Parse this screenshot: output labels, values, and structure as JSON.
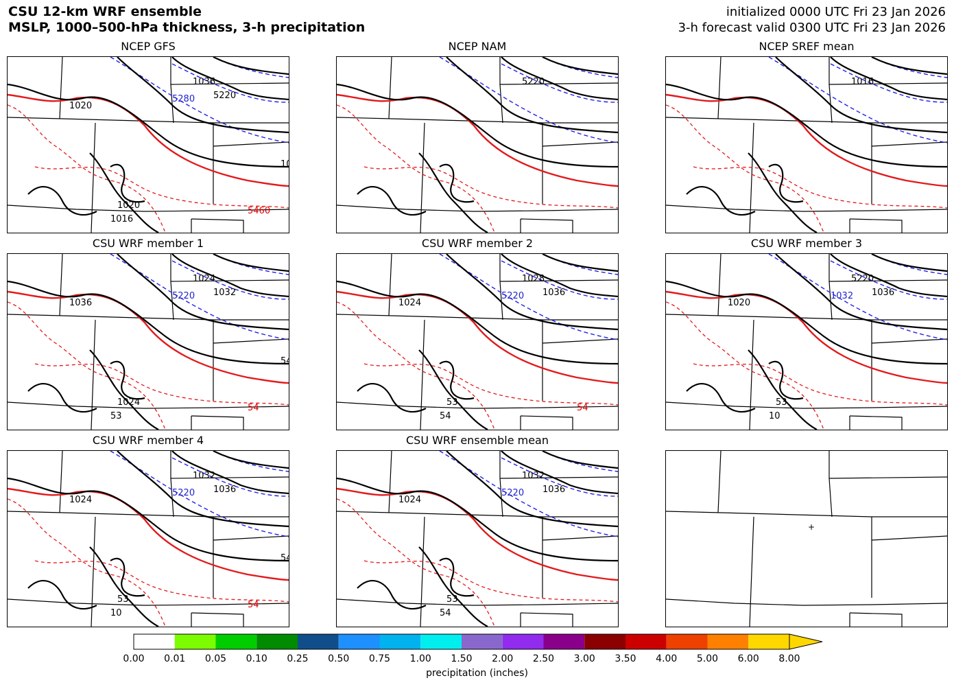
{
  "header": {
    "title_line1": "CSU 12-km WRF ensemble",
    "title_line2": "MSLP, 1000–500-hPa thickness, 3-h precipitation",
    "init_text": "initialized 0000 UTC Fri 23 Jan 2026",
    "valid_text": "3-h forecast valid 0300 UTC Fri 23 Jan 2026"
  },
  "panels": [
    {
      "title": "NCEP GFS",
      "labels": [
        "1036",
        "5280",
        "5220",
        "1020",
        "1020",
        "1016",
        "5460",
        "10"
      ]
    },
    {
      "title": "NCEP NAM",
      "labels": [
        "5220"
      ]
    },
    {
      "title": "NCEP SREF mean",
      "labels": [
        "1016"
      ]
    },
    {
      "title": "CSU WRF member 1",
      "labels": [
        "1024",
        "5220",
        "1032",
        "1036",
        "1024",
        "53",
        "54",
        "54"
      ]
    },
    {
      "title": "CSU WRF member 2",
      "labels": [
        "1028",
        "5220",
        "1036",
        "1024",
        "53",
        "54",
        "54"
      ]
    },
    {
      "title": "CSU WRF member 3",
      "labels": [
        "5220",
        "1032",
        "1036",
        "1020",
        "53",
        "10"
      ]
    },
    {
      "title": "CSU WRF member 4",
      "labels": [
        "1032",
        "5220",
        "1036",
        "1024",
        "53",
        "10",
        "54",
        "54"
      ]
    },
    {
      "title": "CSU WRF ensemble mean",
      "labels": [
        "1032",
        "5220",
        "1036",
        "1024",
        "53",
        "54"
      ]
    },
    {
      "title": "",
      "labels": []
    }
  ],
  "colorbar": {
    "caption": "precipitation (inches)",
    "ticks": [
      "0.00",
      "0.01",
      "0.05",
      "0.10",
      "0.25",
      "0.50",
      "0.75",
      "1.00",
      "1.50",
      "2.00",
      "2.50",
      "3.00",
      "3.50",
      "4.00",
      "5.00",
      "6.00",
      "8.00"
    ],
    "colors": [
      "#ffffff",
      "#7cfc00",
      "#00cd00",
      "#008b00",
      "#104e8b",
      "#1e90ff",
      "#00b2ee",
      "#00eeee",
      "#8968cd",
      "#912cee",
      "#8b008b",
      "#8b0000",
      "#cd0000",
      "#ee4000",
      "#ff7f00",
      "#ffd700"
    ]
  }
}
